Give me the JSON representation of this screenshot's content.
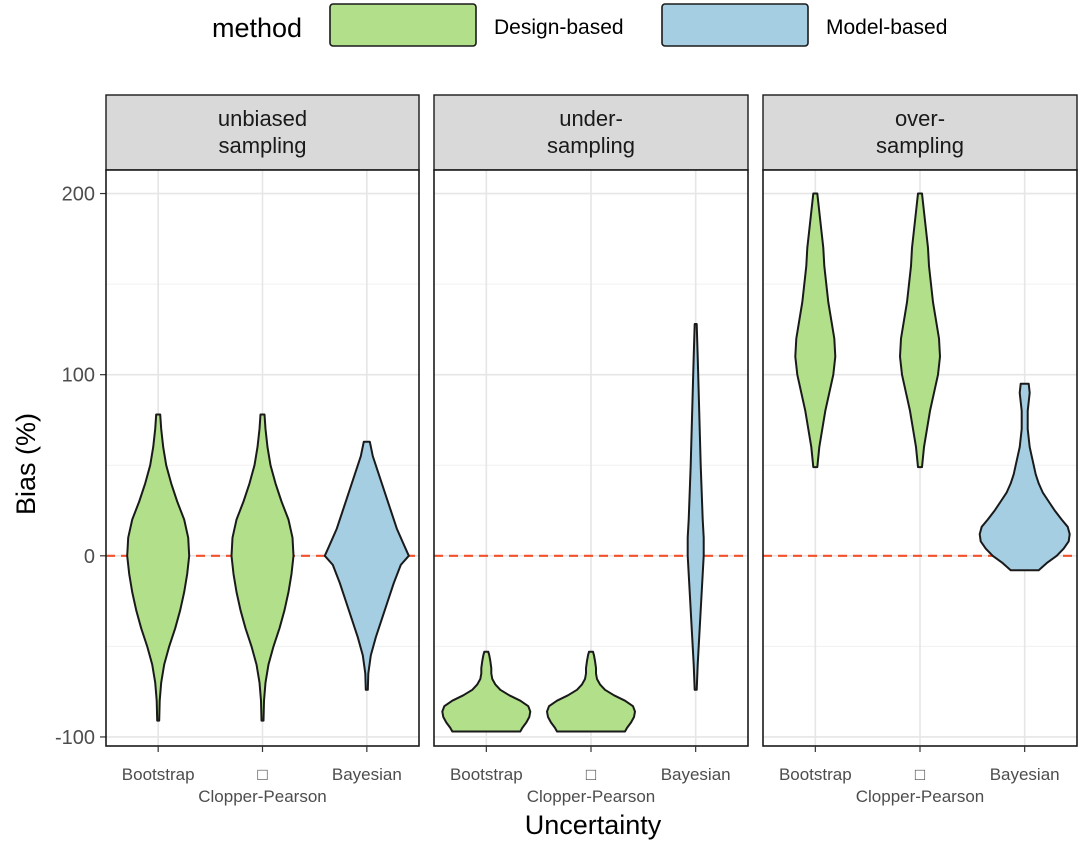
{
  "chart_data": {
    "type": "violin",
    "legend": {
      "title": "method",
      "position": "top",
      "entries": [
        {
          "label": "Design-based",
          "color": "#b2df8a"
        },
        {
          "label": "Model-based",
          "color": "#a6cee3"
        }
      ]
    },
    "xlabel": "Uncertainty",
    "ylabel": "Bias (%)",
    "ylim": [
      -105,
      213
    ],
    "yticks": [
      -100,
      0,
      100,
      200
    ],
    "ytick_labels": [
      "-100",
      "0",
      "100",
      "200"
    ],
    "reference_line": {
      "y": 0,
      "color": "#f4502a",
      "style": "dashed"
    },
    "categories": [
      "Bootstrap",
      "□",
      "Bayesian"
    ],
    "category_sublabel": "Clopper-Pearson",
    "panels": [
      {
        "title_lines": [
          "unbiased",
          "sampling"
        ],
        "violins": [
          {
            "category": "Bootstrap",
            "method": "Design-based",
            "min": -91,
            "max": 78,
            "profile": [
              [
                -91,
                1
              ],
              [
                -80,
                1.5
              ],
              [
                -70,
                3
              ],
              [
                -60,
                6
              ],
              [
                -50,
                11
              ],
              [
                -40,
                17
              ],
              [
                -30,
                22
              ],
              [
                -20,
                26
              ],
              [
                -10,
                29
              ],
              [
                0,
                31
              ],
              [
                10,
                30
              ],
              [
                20,
                26
              ],
              [
                30,
                19
              ],
              [
                40,
                13
              ],
              [
                50,
                8
              ],
              [
                60,
                5
              ],
              [
                70,
                3
              ],
              [
                78,
                2
              ]
            ]
          },
          {
            "category": "□",
            "method": "Design-based",
            "min": -91,
            "max": 78,
            "profile": [
              [
                -91,
                1
              ],
              [
                -80,
                1.5
              ],
              [
                -70,
                3
              ],
              [
                -60,
                6
              ],
              [
                -50,
                11
              ],
              [
                -40,
                17
              ],
              [
                -30,
                22
              ],
              [
                -20,
                26
              ],
              [
                -10,
                29
              ],
              [
                0,
                31
              ],
              [
                10,
                30
              ],
              [
                20,
                26
              ],
              [
                30,
                19
              ],
              [
                40,
                13
              ],
              [
                50,
                8
              ],
              [
                60,
                5
              ],
              [
                70,
                3
              ],
              [
                78,
                2
              ]
            ]
          },
          {
            "category": "Bayesian",
            "method": "Model-based",
            "min": -74,
            "max": 63,
            "profile": [
              [
                -74,
                1
              ],
              [
                -65,
                1.5
              ],
              [
                -55,
                4
              ],
              [
                -45,
                9
              ],
              [
                -35,
                15
              ],
              [
                -25,
                21
              ],
              [
                -15,
                27
              ],
              [
                -5,
                34
              ],
              [
                0,
                42
              ],
              [
                5,
                38
              ],
              [
                15,
                30
              ],
              [
                25,
                24
              ],
              [
                35,
                18
              ],
              [
                45,
                12
              ],
              [
                55,
                6
              ],
              [
                63,
                3
              ]
            ]
          }
        ]
      },
      {
        "title_lines": [
          "under-",
          "sampling"
        ],
        "violins": [
          {
            "category": "Bootstrap",
            "method": "Design-based",
            "min": -97,
            "max": -53,
            "profile": [
              [
                -97,
                34
              ],
              [
                -95,
                36
              ],
              [
                -92,
                40
              ],
              [
                -89,
                43
              ],
              [
                -86,
                44
              ],
              [
                -83,
                42
              ],
              [
                -80,
                34
              ],
              [
                -77,
                23
              ],
              [
                -74,
                14
              ],
              [
                -71,
                9
              ],
              [
                -68,
                6
              ],
              [
                -65,
                5
              ],
              [
                -62,
                5
              ],
              [
                -58,
                4
              ],
              [
                -55,
                3
              ],
              [
                -53,
                2
              ]
            ]
          },
          {
            "category": "□",
            "method": "Design-based",
            "min": -97,
            "max": -53,
            "profile": [
              [
                -97,
                34
              ],
              [
                -95,
                36
              ],
              [
                -92,
                40
              ],
              [
                -89,
                43
              ],
              [
                -86,
                44
              ],
              [
                -83,
                42
              ],
              [
                -80,
                34
              ],
              [
                -77,
                23
              ],
              [
                -74,
                14
              ],
              [
                -71,
                9
              ],
              [
                -68,
                6
              ],
              [
                -65,
                5
              ],
              [
                -62,
                5
              ],
              [
                -58,
                4
              ],
              [
                -55,
                3
              ],
              [
                -53,
                2
              ]
            ]
          },
          {
            "category": "Bayesian",
            "method": "Model-based",
            "min": -74,
            "max": 128,
            "profile": [
              [
                -74,
                1
              ],
              [
                -60,
                2
              ],
              [
                -40,
                4
              ],
              [
                -20,
                6
              ],
              [
                -10,
                7
              ],
              [
                0,
                8
              ],
              [
                10,
                8
              ],
              [
                20,
                7
              ],
              [
                35,
                6
              ],
              [
                50,
                5
              ],
              [
                70,
                4
              ],
              [
                90,
                3
              ],
              [
                110,
                2
              ],
              [
                128,
                1
              ]
            ]
          }
        ]
      },
      {
        "title_lines": [
          "over-",
          "sampling"
        ],
        "violins": [
          {
            "category": "Bootstrap",
            "method": "Design-based",
            "min": 49,
            "max": 200,
            "profile": [
              [
                49,
                2
              ],
              [
                60,
                4
              ],
              [
                70,
                7
              ],
              [
                80,
                10
              ],
              [
                90,
                14
              ],
              [
                100,
                18
              ],
              [
                110,
                20
              ],
              [
                120,
                19
              ],
              [
                130,
                16
              ],
              [
                140,
                13
              ],
              [
                150,
                11
              ],
              [
                160,
                9
              ],
              [
                170,
                8
              ],
              [
                180,
                6
              ],
              [
                190,
                4
              ],
              [
                200,
                2
              ]
            ]
          },
          {
            "category": "□",
            "method": "Design-based",
            "min": 49,
            "max": 200,
            "profile": [
              [
                49,
                2
              ],
              [
                60,
                4
              ],
              [
                70,
                7
              ],
              [
                80,
                10
              ],
              [
                90,
                14
              ],
              [
                100,
                18
              ],
              [
                110,
                20
              ],
              [
                120,
                19
              ],
              [
                130,
                16
              ],
              [
                140,
                13
              ],
              [
                150,
                11
              ],
              [
                160,
                9
              ],
              [
                170,
                8
              ],
              [
                180,
                6
              ],
              [
                190,
                4
              ],
              [
                200,
                2
              ]
            ]
          },
          {
            "category": "Bayesian",
            "method": "Model-based",
            "min": -8,
            "max": 95,
            "profile": [
              [
                -8,
                14
              ],
              [
                -4,
                22
              ],
              [
                0,
                32
              ],
              [
                4,
                39
              ],
              [
                8,
                44
              ],
              [
                12,
                45
              ],
              [
                16,
                43
              ],
              [
                20,
                37
              ],
              [
                25,
                30
              ],
              [
                30,
                24
              ],
              [
                35,
                18
              ],
              [
                40,
                14
              ],
              [
                45,
                11
              ],
              [
                50,
                9
              ],
              [
                55,
                7
              ],
              [
                60,
                5
              ],
              [
                65,
                4
              ],
              [
                70,
                3
              ],
              [
                75,
                3
              ],
              [
                80,
                3
              ],
              [
                85,
                4
              ],
              [
                90,
                5
              ],
              [
                95,
                4
              ]
            ]
          }
        ]
      }
    ]
  }
}
